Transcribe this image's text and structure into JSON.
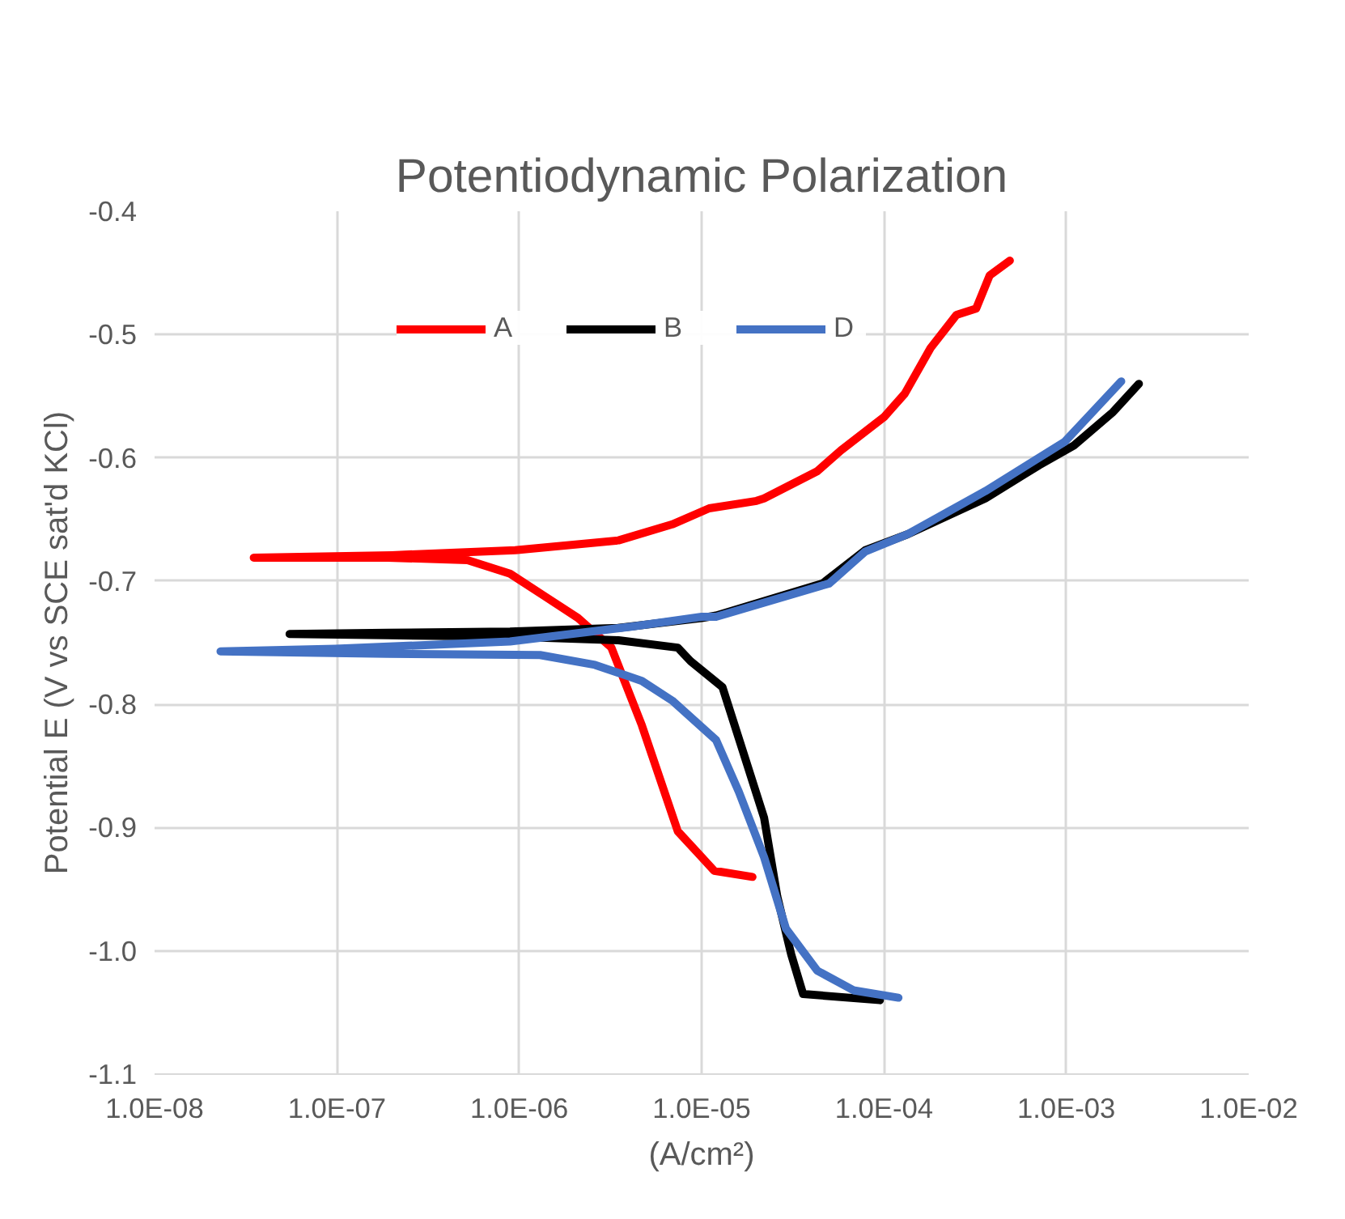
{
  "chart_data": {
    "type": "line",
    "title": "Potentiodynamic Polarization",
    "xlabel": "(A/cm²)",
    "ylabel": "Potential E (V vs SCE sat'd KCl)",
    "log": "x",
    "grid": true,
    "legend": "top",
    "marker": "none",
    "line_style": "solid",
    "xlim": [
      1e-08,
      0.01
    ],
    "ylim": [
      -1.1,
      -0.4
    ],
    "xticks": [
      {
        "value": 1e-08,
        "label": "1.0E-08"
      },
      {
        "value": 1e-07,
        "label": "1.0E-07"
      },
      {
        "value": 1e-06,
        "label": "1.0E-06"
      },
      {
        "value": 1e-05,
        "label": "1.0E-05"
      },
      {
        "value": 0.0001,
        "label": "1.0E-04"
      },
      {
        "value": 0.001,
        "label": "1.0E-03"
      },
      {
        "value": 0.01,
        "label": "1.0E-02"
      }
    ],
    "yticks": [
      -0.4,
      -0.5,
      -0.6,
      -0.7,
      -0.8,
      -0.9,
      {
        "value": -1.0,
        "label": "-1.0"
      },
      -1.1
    ],
    "series": [
      {
        "name": "A",
        "color": "#ff0000",
        "x": [
          1.9e-05,
          1.17e-05,
          1e-05,
          7.4e-06,
          4.7e-06,
          3.2e-06,
          2.1e-06,
          1.4e-06,
          8.9e-07,
          5.2e-07,
          1.9e-07,
          3.5e-08,
          2e-07,
          9.5e-07,
          3.5e-06,
          6.9e-06,
          1.1e-05,
          2e-05,
          2.2e-05,
          4.3e-05,
          5.8e-05,
          0.0001,
          0.00013,
          0.00018,
          0.00025,
          0.00032,
          0.00038,
          0.00049
        ],
        "values": [
          -0.94,
          -0.935,
          -0.924,
          -0.903,
          -0.817,
          -0.754,
          -0.73,
          -0.713,
          -0.694,
          -0.683,
          -0.681,
          -0.681,
          -0.679,
          -0.675,
          -0.667,
          -0.654,
          -0.641,
          -0.635,
          -0.633,
          -0.611,
          -0.594,
          -0.567,
          -0.548,
          -0.511,
          -0.484,
          -0.479,
          -0.452,
          -0.44
        ]
      },
      {
        "name": "B",
        "color": "#000000",
        "x": [
          9.5e-05,
          3.6e-05,
          3.1e-05,
          2.6e-05,
          2.2e-05,
          1.7e-05,
          1.3e-05,
          8.7e-06,
          7.4e-06,
          3.5e-06,
          8.9e-07,
          1.9e-07,
          5.5e-08,
          1.9e-07,
          8.9e-07,
          3.5e-06,
          1e-05,
          1.2e-05,
          4.6e-05,
          7.9e-05,
          0.000135,
          0.00036,
          0.00071,
          0.0011,
          0.0018,
          0.0025
        ],
        "values": [
          -1.04,
          -1.035,
          -1.003,
          -0.956,
          -0.892,
          -0.84,
          -0.786,
          -0.765,
          -0.754,
          -0.748,
          -0.745,
          -0.744,
          -0.743,
          -0.742,
          -0.741,
          -0.738,
          -0.73,
          -0.728,
          -0.702,
          -0.675,
          -0.662,
          -0.633,
          -0.606,
          -0.59,
          -0.563,
          -0.54
        ]
      },
      {
        "name": "D",
        "color": "#4472c4",
        "x": [
          0.00012,
          6.8e-05,
          4.3e-05,
          2.9e-05,
          2.2e-05,
          1.6e-05,
          1.2e-05,
          6.9e-06,
          4.7e-06,
          2.6e-06,
          1.3e-06,
          1.9e-07,
          2.3e-08,
          9.8e-08,
          8.9e-07,
          4.1e-06,
          1e-05,
          1.2e-05,
          5e-05,
          7.9e-05,
          0.000135,
          0.00036,
          0.00098,
          0.002
        ],
        "values": [
          -1.038,
          -1.032,
          -1.016,
          -0.982,
          -0.924,
          -0.871,
          -0.829,
          -0.797,
          -0.781,
          -0.768,
          -0.76,
          -0.759,
          -0.757,
          -0.755,
          -0.749,
          -0.737,
          -0.729,
          -0.729,
          -0.702,
          -0.676,
          -0.662,
          -0.627,
          -0.587,
          -0.538
        ]
      }
    ]
  }
}
